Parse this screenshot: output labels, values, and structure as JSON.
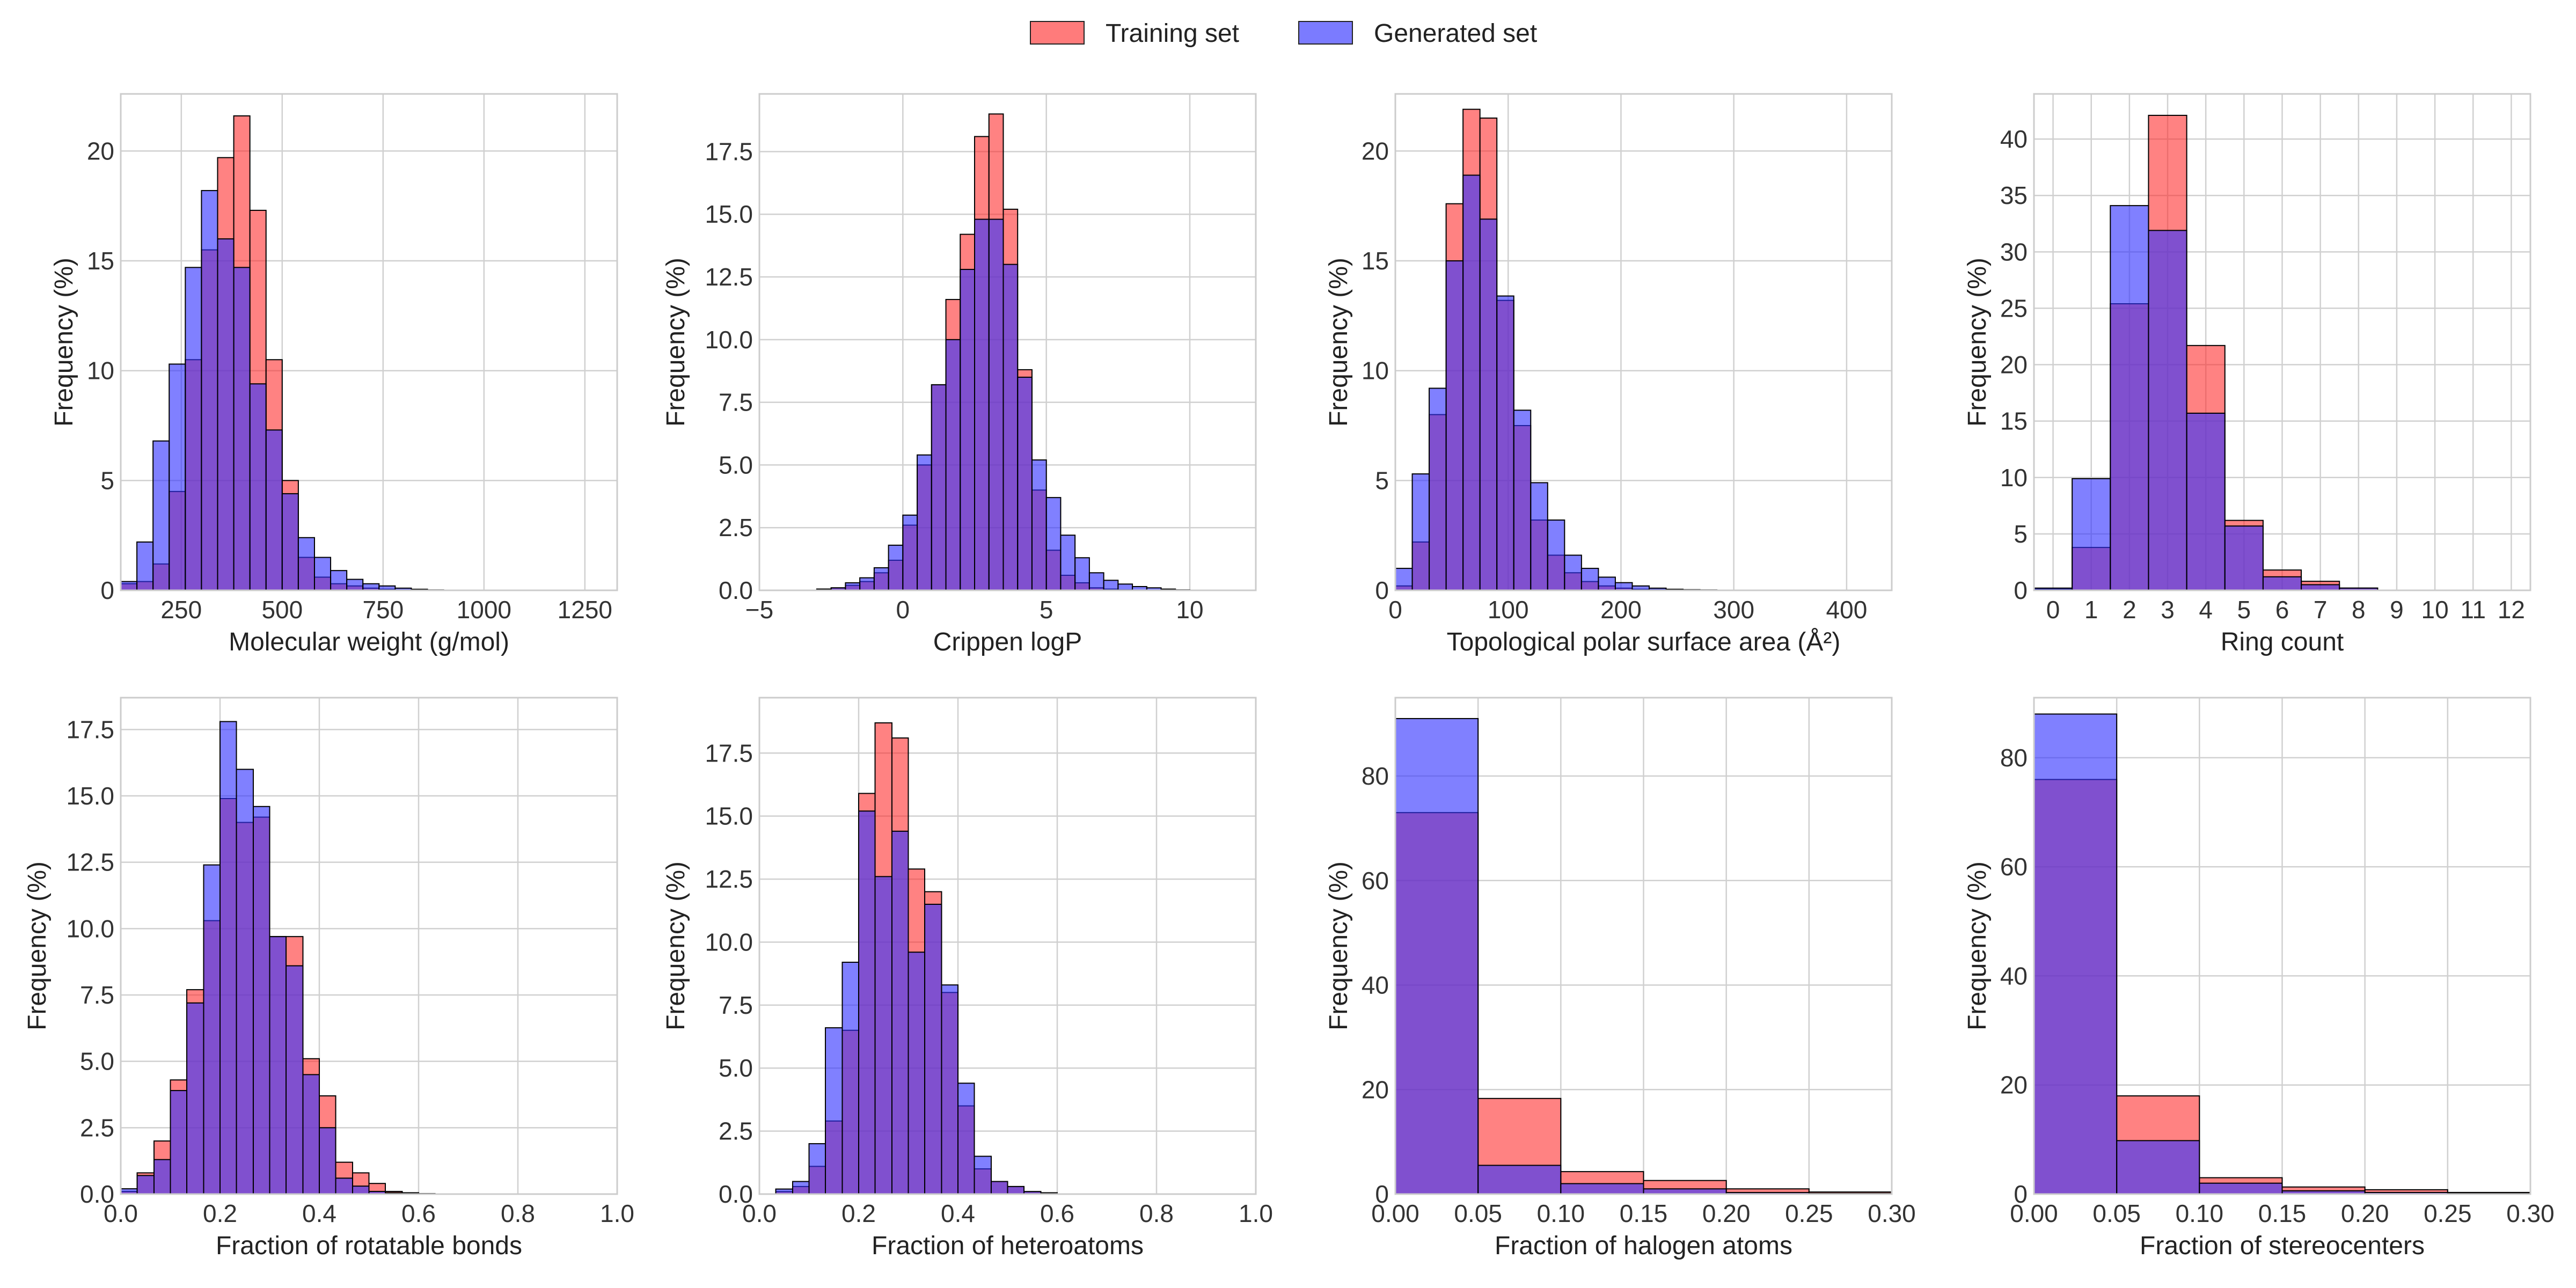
{
  "legend": [
    {
      "label": "Training set",
      "color": "#ff7b7b"
    },
    {
      "label": "Generated set",
      "color": "#7b7bff"
    }
  ],
  "chart_data": [
    {
      "type": "bar",
      "xlabel": "Molecular weight (g/mol)",
      "ylabel": "Frequency (%)",
      "xlim": [
        100,
        1330
      ],
      "ylim": [
        0,
        22.6
      ],
      "xticks": [
        250,
        500,
        750,
        1000,
        1250
      ],
      "xtick_labels": [
        "250",
        "500",
        "750",
        "1000",
        "1250"
      ],
      "yticks": [
        0,
        5,
        10,
        15,
        20
      ],
      "ytick_labels": [
        "0",
        "5",
        "10",
        "15",
        "20"
      ],
      "bin_edges": [
        100,
        140,
        180,
        220,
        260,
        300,
        340,
        380,
        420,
        460,
        500,
        540,
        580,
        620,
        660,
        700,
        740,
        780,
        820,
        860,
        900
      ],
      "series": [
        {
          "name": "Training set",
          "values": [
            0.3,
            0.4,
            1.2,
            4.5,
            10.5,
            15.5,
            19.7,
            21.6,
            17.3,
            10.5,
            5.0,
            1.5,
            0.6,
            0.3,
            0.2,
            0.1,
            0.05,
            0.02,
            0.01,
            0.0
          ]
        },
        {
          "name": "Generated set",
          "values": [
            0.4,
            2.2,
            6.8,
            10.3,
            14.7,
            18.2,
            16.0,
            14.7,
            9.4,
            7.3,
            4.4,
            2.4,
            1.5,
            0.9,
            0.5,
            0.3,
            0.2,
            0.1,
            0.05,
            0.02
          ]
        }
      ]
    },
    {
      "type": "bar",
      "xlabel": "Crippen logP",
      "ylabel": "Frequency (%)",
      "xlim": [
        -5,
        12.3
      ],
      "ylim": [
        0,
        19.8
      ],
      "xticks": [
        -5,
        0,
        5,
        10
      ],
      "xtick_labels": [
        "−5",
        "0",
        "5",
        "10"
      ],
      "yticks": [
        0,
        2.5,
        5,
        7.5,
        10,
        12.5,
        15,
        17.5
      ],
      "ytick_labels": [
        "0.0",
        "2.5",
        "5.0",
        "7.5",
        "10.0",
        "12.5",
        "15.0",
        "17.5"
      ],
      "bin_edges": [
        -3,
        -2.5,
        -2,
        -1.5,
        -1,
        -0.5,
        0,
        0.5,
        1,
        1.5,
        2,
        2.5,
        3,
        3.5,
        4,
        4.5,
        5,
        5.5,
        6,
        6.5,
        7,
        7.5,
        8,
        8.5,
        9,
        9.5,
        10
      ],
      "series": [
        {
          "name": "Training set",
          "values": [
            0.05,
            0.1,
            0.2,
            0.35,
            0.7,
            1.2,
            2.6,
            5.0,
            8.2,
            11.6,
            14.2,
            18.1,
            19.0,
            15.2,
            8.8,
            4.0,
            1.6,
            0.6,
            0.3,
            0.1,
            0.05,
            0.02,
            0.01,
            0.0,
            0.0,
            0.0
          ]
        },
        {
          "name": "Generated set",
          "values": [
            0.05,
            0.1,
            0.3,
            0.5,
            0.9,
            1.8,
            3.0,
            5.4,
            8.2,
            10.0,
            12.8,
            14.8,
            14.8,
            13.0,
            8.5,
            5.2,
            3.7,
            2.2,
            1.3,
            0.7,
            0.4,
            0.25,
            0.15,
            0.1,
            0.05,
            0.02
          ]
        }
      ]
    },
    {
      "type": "bar",
      "xlabel": "Topological polar surface area (Å²)",
      "ylabel": "Frequency (%)",
      "xlim": [
        0,
        440
      ],
      "ylim": [
        0,
        22.6
      ],
      "xticks": [
        0,
        100,
        200,
        300,
        400
      ],
      "xtick_labels": [
        "0",
        "100",
        "200",
        "300",
        "400"
      ],
      "yticks": [
        0,
        5,
        10,
        15,
        20
      ],
      "ytick_labels": [
        "0",
        "5",
        "10",
        "15",
        "20"
      ],
      "bin_edges": [
        0,
        15,
        30,
        45,
        60,
        75,
        90,
        105,
        120,
        135,
        150,
        165,
        180,
        195,
        210,
        225,
        240,
        255,
        270,
        285,
        300,
        315,
        330
      ],
      "series": [
        {
          "name": "Training set",
          "values": [
            0.2,
            2.2,
            8.0,
            17.6,
            21.9,
            21.5,
            13.2,
            7.5,
            3.2,
            1.6,
            0.8,
            0.4,
            0.2,
            0.1,
            0.05,
            0.03,
            0.02,
            0.01,
            0.01,
            0.0,
            0.0,
            0.0
          ]
        },
        {
          "name": "Generated set",
          "values": [
            1.0,
            5.3,
            9.2,
            15.0,
            18.9,
            16.9,
            13.4,
            8.2,
            4.9,
            3.2,
            1.6,
            1.0,
            0.6,
            0.35,
            0.2,
            0.1,
            0.05,
            0.03,
            0.02,
            0.01,
            0.01,
            0.0
          ]
        }
      ]
    },
    {
      "type": "bar",
      "xlabel": "Ring count",
      "ylabel": "Frequency (%)",
      "xlim": [
        -0.5,
        12.5
      ],
      "ylim": [
        0,
        44
      ],
      "xticks": [
        0,
        1,
        2,
        3,
        4,
        5,
        6,
        7,
        8,
        9,
        10,
        11,
        12
      ],
      "xtick_labels": [
        "0",
        "1",
        "2",
        "3",
        "4",
        "5",
        "6",
        "7",
        "8",
        "9",
        "10",
        "11",
        "12"
      ],
      "yticks": [
        0,
        5,
        10,
        15,
        20,
        25,
        30,
        35,
        40
      ],
      "ytick_labels": [
        "0",
        "5",
        "10",
        "15",
        "20",
        "25",
        "30",
        "35",
        "40"
      ],
      "bin_edges": [
        -0.5,
        0.5,
        1.5,
        2.5,
        3.5,
        4.5,
        5.5,
        6.5,
        7.5,
        8.5
      ],
      "series": [
        {
          "name": "Training set",
          "values": [
            0.1,
            3.8,
            25.4,
            42.1,
            21.7,
            6.2,
            1.8,
            0.8,
            0.2
          ]
        },
        {
          "name": "Generated set",
          "values": [
            0.2,
            9.9,
            34.1,
            31.9,
            15.7,
            5.7,
            1.2,
            0.5,
            0.2
          ]
        }
      ]
    },
    {
      "type": "bar",
      "xlabel": "Fraction of rotatable bonds",
      "ylabel": "Frequency (%)",
      "xlim": [
        0,
        1.0
      ],
      "ylim": [
        0,
        18.7
      ],
      "xticks": [
        0,
        0.2,
        0.4,
        0.6,
        0.8,
        1.0
      ],
      "xtick_labels": [
        "0.0",
        "0.2",
        "0.4",
        "0.6",
        "0.8",
        "1.0"
      ],
      "yticks": [
        0,
        2.5,
        5,
        7.5,
        10,
        12.5,
        15,
        17.5
      ],
      "ytick_labels": [
        "0.0",
        "2.5",
        "5.0",
        "7.5",
        "10.0",
        "12.5",
        "15.0",
        "17.5"
      ],
      "bin_edges": [
        0,
        0.033,
        0.067,
        0.1,
        0.133,
        0.167,
        0.2,
        0.233,
        0.267,
        0.3,
        0.333,
        0.367,
        0.4,
        0.433,
        0.467,
        0.5,
        0.533,
        0.567,
        0.6,
        0.633,
        0.667
      ],
      "series": [
        {
          "name": "Training set",
          "values": [
            0.1,
            0.8,
            2.0,
            4.3,
            7.7,
            10.3,
            14.9,
            14.0,
            14.2,
            9.7,
            9.7,
            5.1,
            3.7,
            1.2,
            0.8,
            0.4,
            0.1,
            0.05,
            0.02,
            0.01
          ]
        },
        {
          "name": "Generated set",
          "values": [
            0.2,
            0.7,
            1.3,
            3.9,
            7.2,
            12.4,
            17.8,
            16.0,
            14.6,
            9.7,
            8.6,
            4.5,
            2.5,
            0.6,
            0.3,
            0.1,
            0.05,
            0.02,
            0.01,
            0.0
          ]
        }
      ]
    },
    {
      "type": "bar",
      "xlabel": "Fraction of heteroatoms",
      "ylabel": "Frequency (%)",
      "xlim": [
        0,
        1.0
      ],
      "ylim": [
        0,
        19.7
      ],
      "xticks": [
        0,
        0.2,
        0.4,
        0.6,
        0.8,
        1.0
      ],
      "xtick_labels": [
        "0.0",
        "0.2",
        "0.4",
        "0.6",
        "0.8",
        "1.0"
      ],
      "yticks": [
        0,
        2.5,
        5,
        7.5,
        10,
        12.5,
        15,
        17.5
      ],
      "ytick_labels": [
        "0.0",
        "2.5",
        "5.0",
        "7.5",
        "10.0",
        "12.5",
        "15.0",
        "17.5"
      ],
      "bin_edges": [
        0.033,
        0.067,
        0.1,
        0.133,
        0.167,
        0.2,
        0.233,
        0.267,
        0.3,
        0.333,
        0.367,
        0.4,
        0.433,
        0.467,
        0.5,
        0.533,
        0.567,
        0.6
      ],
      "series": [
        {
          "name": "Training set",
          "values": [
            0.1,
            0.3,
            1.1,
            2.9,
            6.5,
            15.9,
            18.7,
            18.1,
            12.9,
            12.0,
            8.0,
            3.5,
            1.0,
            0.5,
            0.3,
            0.1,
            0.05
          ]
        },
        {
          "name": "Generated set",
          "values": [
            0.2,
            0.5,
            2.0,
            6.6,
            9.2,
            15.2,
            12.6,
            14.4,
            9.6,
            11.5,
            8.3,
            4.4,
            1.5,
            0.5,
            0.3,
            0.1,
            0.05
          ]
        }
      ]
    },
    {
      "type": "bar",
      "xlabel": "Fraction of halogen atoms",
      "ylabel": "Frequency (%)",
      "xlim": [
        0,
        0.3
      ],
      "ylim": [
        0,
        95
      ],
      "xticks": [
        0,
        0.05,
        0.1,
        0.15,
        0.2,
        0.25,
        0.3
      ],
      "xtick_labels": [
        "0.00",
        "0.05",
        "0.10",
        "0.15",
        "0.20",
        "0.25",
        "0.30"
      ],
      "yticks": [
        0,
        20,
        40,
        60,
        80
      ],
      "ytick_labels": [
        "0",
        "20",
        "40",
        "60",
        "80"
      ],
      "bin_edges": [
        0,
        0.05,
        0.1,
        0.15,
        0.2,
        0.25,
        0.3,
        0.35,
        0.4,
        0.45
      ],
      "series": [
        {
          "name": "Training set",
          "values": [
            73.0,
            18.3,
            4.3,
            2.6,
            1.0,
            0.4,
            0.2,
            0.1,
            0.05
          ]
        },
        {
          "name": "Generated set",
          "values": [
            91.0,
            5.5,
            2.0,
            1.0,
            0.3,
            0.15,
            0.1,
            0.05,
            0.02
          ]
        }
      ]
    },
    {
      "type": "bar",
      "xlabel": "Fraction of stereocenters",
      "ylabel": "Frequency (%)",
      "xlim": [
        0,
        0.3
      ],
      "ylim": [
        0,
        91
      ],
      "xticks": [
        0,
        0.05,
        0.1,
        0.15,
        0.2,
        0.25,
        0.3
      ],
      "xtick_labels": [
        "0.00",
        "0.05",
        "0.10",
        "0.15",
        "0.20",
        "0.25",
        "0.30"
      ],
      "yticks": [
        0,
        20,
        40,
        60,
        80
      ],
      "ytick_labels": [
        "0",
        "20",
        "40",
        "60",
        "80"
      ],
      "bin_edges": [
        0,
        0.05,
        0.1,
        0.15,
        0.2,
        0.25,
        0.3,
        0.35,
        0.4,
        0.45
      ],
      "series": [
        {
          "name": "Training set",
          "values": [
            76.0,
            18.0,
            3.0,
            1.3,
            0.8,
            0.3,
            0.1,
            0.05,
            0.02
          ]
        },
        {
          "name": "Generated set",
          "values": [
            88.0,
            9.8,
            2.0,
            0.6,
            0.3,
            0.1,
            0.05,
            0.02,
            0.01
          ]
        }
      ]
    }
  ]
}
